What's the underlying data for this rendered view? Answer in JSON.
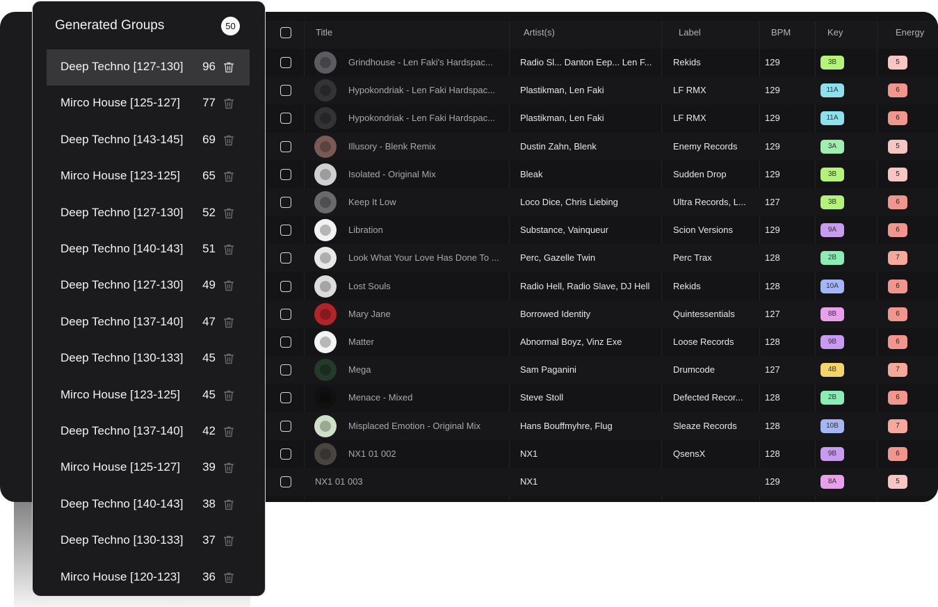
{
  "sidebar": {
    "title": "Generated Groups",
    "total_count": "50",
    "groups": [
      {
        "label": "Deep Techno [127-130]",
        "count": "96"
      },
      {
        "label": "Mirco House [125-127]",
        "count": "77"
      },
      {
        "label": "Deep Techno [143-145]",
        "count": "69"
      },
      {
        "label": "Mirco House [123-125]",
        "count": "65"
      },
      {
        "label": "Deep Techno [127-130]",
        "count": "52"
      },
      {
        "label": "Deep Techno [140-143]",
        "count": "51"
      },
      {
        "label": "Deep Techno [127-130]",
        "count": "49"
      },
      {
        "label": "Deep Techno [137-140]",
        "count": "47"
      },
      {
        "label": "Deep Techno [130-133]",
        "count": "45"
      },
      {
        "label": "Mirco House [123-125]",
        "count": "45"
      },
      {
        "label": "Deep Techno [137-140]",
        "count": "42"
      },
      {
        "label": "Mirco House [125-127]",
        "count": "39"
      },
      {
        "label": "Deep Techno [140-143]",
        "count": "38"
      },
      {
        "label": "Deep Techno [130-133]",
        "count": "37"
      },
      {
        "label": "Mirco House [120-123]",
        "count": "36"
      }
    ]
  },
  "table": {
    "headers": {
      "title": "Title",
      "artists": "Artist(s)",
      "label": "Label",
      "bpm": "BPM",
      "key": "Key",
      "energy": "Energy"
    },
    "rows": [
      {
        "title": "Grindhouse - Len Faki's Hardspac...",
        "artists": "Radio Sl...  Danton Eep...  Len F...",
        "label": "Rekids",
        "bpm": "129",
        "key": "3B",
        "key_color": "#b5f27a",
        "energy": "5",
        "energy_color": "#f7c6c3",
        "art_color": "#5b5b60"
      },
      {
        "title": "Hypokondriak - Len Faki Hardspac...",
        "artists": "Plastikman,  Len Faki",
        "label": "LF RMX",
        "bpm": "129",
        "key": "11A",
        "key_color": "#8ee0ec",
        "energy": "6",
        "energy_color": "#f0968d",
        "art_color": "#333336"
      },
      {
        "title": "Hypokondriak - Len Faki Hardspac...",
        "artists": "Plastikman,  Len Faki",
        "label": "LF RMX",
        "bpm": "129",
        "key": "11A",
        "key_color": "#8ee0ec",
        "energy": "6",
        "energy_color": "#f0968d",
        "art_color": "#333336"
      },
      {
        "title": "Illusory - Blenk Remix",
        "artists": "Dustin Zahn,  Blenk",
        "label": "Enemy Records",
        "bpm": "129",
        "key": "3A",
        "key_color": "#9ef0b0",
        "energy": "5",
        "energy_color": "#f7c6c3",
        "art_color": "#7a5a55"
      },
      {
        "title": "Isolated - Original Mix",
        "artists": "Bleak",
        "label": "Sudden Drop",
        "bpm": "129",
        "key": "3B",
        "key_color": "#b5f27a",
        "energy": "5",
        "energy_color": "#f7c6c3",
        "art_color": "#d0d0d0"
      },
      {
        "title": "Keep It Low",
        "artists": "Loco Dice,  Chris Liebing",
        "label": "Ultra Records, L...",
        "bpm": "127",
        "key": "3B",
        "key_color": "#b5f27a",
        "energy": "6",
        "energy_color": "#f0968d",
        "art_color": "#6a6a6e"
      },
      {
        "title": "Libration",
        "artists": "Substance,  Vainqueur",
        "label": "Scion Versions",
        "bpm": "129",
        "key": "9A",
        "key_color": "#c89af0",
        "energy": "6",
        "energy_color": "#f0968d",
        "art_color": "#f2f2f2"
      },
      {
        "title": "Look What Your Love Has Done To ...",
        "artists": "Perc,  Gazelle Twin",
        "label": "Perc Trax",
        "bpm": "128",
        "key": "2B",
        "key_color": "#8cecb4",
        "energy": "7",
        "energy_color": "#f6a89a",
        "art_color": "#e8e8e8"
      },
      {
        "title": "Lost Souls",
        "artists": "Radio Hell,  Radio Slave,  DJ Hell",
        "label": "Rekids",
        "bpm": "128",
        "key": "10A",
        "key_color": "#a4b6f5",
        "energy": "6",
        "energy_color": "#f0968d",
        "art_color": "#dcdcdc"
      },
      {
        "title": "Mary Jane",
        "artists": "Borrowed Identity",
        "label": "Quintessentials",
        "bpm": "127",
        "key": "8B",
        "key_color": "#e8a0ea",
        "energy": "6",
        "energy_color": "#f0968d",
        "art_color": "#b0242a"
      },
      {
        "title": "Matter",
        "artists": "Abnormal Boyz,  Vinz Exe",
        "label": "Loose Records",
        "bpm": "128",
        "key": "9B",
        "key_color": "#c89af0",
        "energy": "6",
        "energy_color": "#f0968d",
        "art_color": "#f4f4f4"
      },
      {
        "title": "Mega",
        "artists": "Sam Paganini",
        "label": "Drumcode",
        "bpm": "127",
        "key": "4B",
        "key_color": "#f5d56a",
        "energy": "7",
        "energy_color": "#f6a89a",
        "art_color": "#243a2a"
      },
      {
        "title": "Menace - Mixed",
        "artists": "Steve Stoll",
        "label": "Defected Recor...",
        "bpm": "128",
        "key": "2B",
        "key_color": "#8cecb4",
        "energy": "6",
        "energy_color": "#f0968d",
        "art_color": "#101010"
      },
      {
        "title": "Misplaced Emotion - Original Mix",
        "artists": "Hans Bouffmyhre,  Flug",
        "label": "Sleaze Records",
        "bpm": "128",
        "key": "10B",
        "key_color": "#a4b6f5",
        "energy": "7",
        "energy_color": "#f6a89a",
        "art_color": "#cfe0c8"
      },
      {
        "title": "NX1 01 002",
        "artists": "NX1",
        "label": "QsensX",
        "bpm": "128",
        "key": "9B",
        "key_color": "#c89af0",
        "energy": "6",
        "energy_color": "#f0968d",
        "art_color": "#4a4440"
      },
      {
        "title": "NX1 01 003",
        "artists": "NX1",
        "label": "",
        "bpm": "129",
        "key": "8A",
        "key_color": "#e8a0ea",
        "energy": "5",
        "energy_color": "#f7c6c3",
        "art_color": ""
      }
    ]
  }
}
